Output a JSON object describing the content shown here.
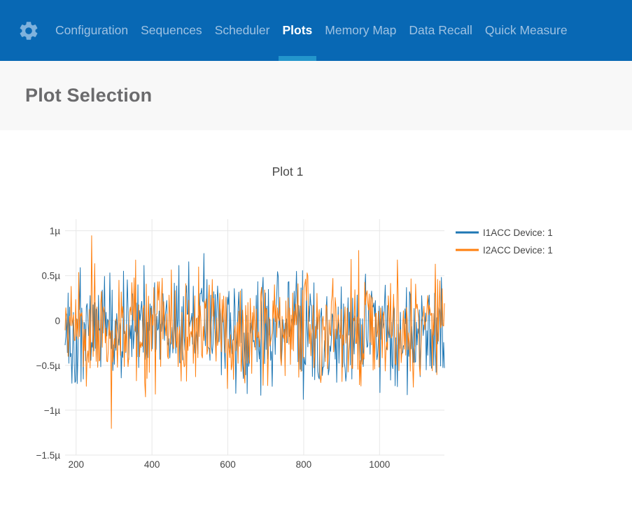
{
  "nav": {
    "settings_icon": "gear-icon",
    "active_item": "Plots",
    "items": [
      {
        "label": "Configuration"
      },
      {
        "label": "Sequences"
      },
      {
        "label": "Scheduler"
      },
      {
        "label": "Plots"
      },
      {
        "label": "Memory Map"
      },
      {
        "label": "Data Recall"
      },
      {
        "label": "Quick Measure"
      }
    ]
  },
  "page": {
    "title": "Plot Selection"
  },
  "colors": {
    "nav_bg": "#0868b4",
    "nav_text": "#9fc2e2",
    "nav_active_text": "#ffffff",
    "nav_underline": "#2396cc",
    "gear": "#7fb2dd",
    "header_bg": "#f8f8f8",
    "header_text": "#6b6b6d",
    "chart_text": "#444444",
    "grid": "#e7e7e7"
  },
  "chart_data": {
    "type": "line",
    "title": "Plot 1",
    "xlabel": "",
    "ylabel": "",
    "x_range": [
      171,
      1171
    ],
    "y_range": [
      -1.5e-06,
      1.13e-06
    ],
    "xticks": [
      200,
      400,
      600,
      800,
      1000
    ],
    "yticks": [
      {
        "value": 1e-06,
        "label": "1µ"
      },
      {
        "value": 5e-07,
        "label": "0.5µ"
      },
      {
        "value": 0,
        "label": "0"
      },
      {
        "value": -5e-07,
        "label": "−0.5µ"
      },
      {
        "value": -1e-06,
        "label": "−1µ"
      },
      {
        "value": -1.5e-06,
        "label": "−1.5µ"
      }
    ],
    "grid": true,
    "legend_position": "outside-top-right",
    "series": [
      {
        "name": "I1ACC Device: 1",
        "color": "#1f77b4",
        "points": 501,
        "seed": 1337,
        "noise": {
          "distribution": "gaussian-with-spikes",
          "mean": -8e-08,
          "spread": 6.2e-07,
          "spike_chance": 0.035,
          "spike_min": 2.5e-07,
          "spike_max": 7.2e-07,
          "clip_min": -1.42e-06,
          "clip_max": 1e-06
        }
      },
      {
        "name": "I2ACC Device: 1",
        "color": "#ff7f0e",
        "points": 501,
        "seed": 924,
        "noise": {
          "distribution": "gaussian-with-spikes",
          "mean": -9e-08,
          "spread": 6e-07,
          "spike_chance": 0.03,
          "spike_min": 2.5e-07,
          "spike_max": 6.8e-07,
          "clip_min": -1.31e-06,
          "clip_max": 1.01e-06
        }
      }
    ]
  }
}
